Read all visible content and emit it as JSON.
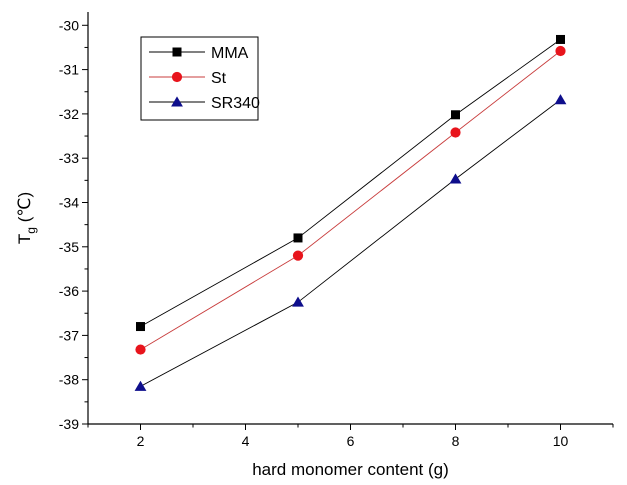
{
  "chart_data": {
    "type": "line",
    "title": "",
    "xlabel": "hard monomer content (g)",
    "ylabel": {
      "main": "T",
      "subscript": "g",
      "unit": " (℃)"
    },
    "x": [
      2,
      5,
      8,
      10
    ],
    "xlim": [
      1,
      11
    ],
    "ylim": [
      -39,
      -29.7
    ],
    "xticks": [
      2,
      4,
      6,
      8,
      10
    ],
    "yticks": [
      -39,
      -38,
      -37,
      -36,
      -35,
      -34,
      -33,
      -32,
      -31,
      -30
    ],
    "grid": false,
    "legend_position": "top-left",
    "series": [
      {
        "name": "MMA",
        "values": [
          -36.8,
          -34.8,
          -32.02,
          -30.32
        ],
        "color": "#000000",
        "marker": "square",
        "line_color": "#000000"
      },
      {
        "name": "St",
        "values": [
          -37.32,
          -35.2,
          -32.42,
          -30.58
        ],
        "color": "#e8141c",
        "marker": "circle",
        "line_color": "#c83c3c"
      },
      {
        "name": "SR340",
        "values": [
          -38.15,
          -36.25,
          -33.47,
          -31.68
        ],
        "color": "#0e0e8c",
        "marker": "triangle",
        "line_color": "#000000"
      }
    ]
  }
}
